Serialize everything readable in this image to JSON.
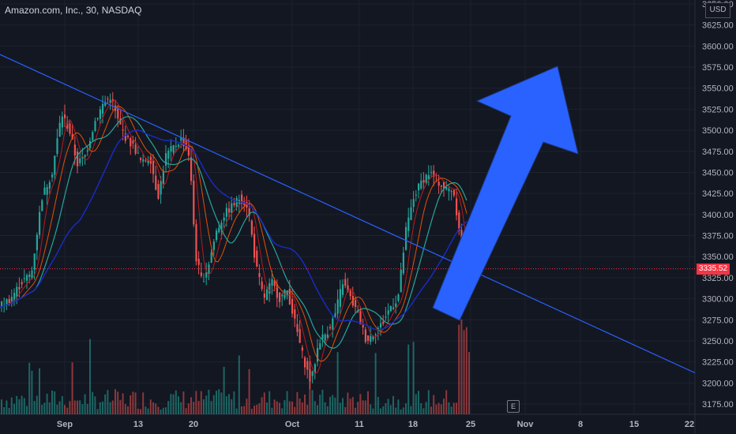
{
  "header": {
    "title": "Amazon.com, Inc., 30, NASDAQ"
  },
  "axis": {
    "currency": "USD"
  },
  "last_price": {
    "value": "3335.52",
    "color": "#f23645"
  },
  "colors": {
    "up": "#26a69a",
    "down": "#ef5350",
    "trendline": "#2962ff",
    "arrow": "#2962ff",
    "ma_fast": "#b71c1c",
    "ma_mid": "#e65100",
    "ma_slow": "#26a69a",
    "ma_long": "#1a2bc9"
  },
  "chart_data": {
    "type": "candlestick",
    "ylim": [
      3175,
      3650
    ],
    "yticks": [
      "3650.00",
      "3625.00",
      "3600.00",
      "3575.00",
      "3550.00",
      "3525.00",
      "3500.00",
      "3475.00",
      "3450.00",
      "3425.00",
      "3400.00",
      "3375.00",
      "3350.00",
      "3325.00",
      "3300.00",
      "3275.00",
      "3250.00",
      "3225.00",
      "3200.00",
      "3175.00"
    ],
    "xticks": [
      "Sep",
      "13",
      "20",
      "Oct",
      "11",
      "18",
      "25",
      "Nov",
      "8",
      "15",
      "22"
    ],
    "price_path": [
      [
        0,
        3290
      ],
      [
        15,
        3300
      ],
      [
        30,
        3320
      ],
      [
        42,
        3330
      ],
      [
        55,
        3420
      ],
      [
        68,
        3450
      ],
      [
        80,
        3520
      ],
      [
        90,
        3500
      ],
      [
        100,
        3460
      ],
      [
        110,
        3470
      ],
      [
        122,
        3510
      ],
      [
        132,
        3530
      ],
      [
        142,
        3540
      ],
      [
        152,
        3510
      ],
      [
        162,
        3490
      ],
      [
        172,
        3480
      ],
      [
        182,
        3460
      ],
      [
        192,
        3470
      ],
      [
        202,
        3420
      ],
      [
        212,
        3470
      ],
      [
        222,
        3480
      ],
      [
        232,
        3490
      ],
      [
        242,
        3470
      ],
      [
        250,
        3350
      ],
      [
        258,
        3320
      ],
      [
        266,
        3340
      ],
      [
        276,
        3380
      ],
      [
        286,
        3400
      ],
      [
        296,
        3410
      ],
      [
        306,
        3420
      ],
      [
        316,
        3410
      ],
      [
        326,
        3340
      ],
      [
        336,
        3300
      ],
      [
        346,
        3320
      ],
      [
        356,
        3300
      ],
      [
        366,
        3310
      ],
      [
        376,
        3270
      ],
      [
        386,
        3230
      ],
      [
        396,
        3200
      ],
      [
        406,
        3250
      ],
      [
        416,
        3260
      ],
      [
        426,
        3280
      ],
      [
        436,
        3320
      ],
      [
        446,
        3300
      ],
      [
        456,
        3280
      ],
      [
        466,
        3250
      ],
      [
        476,
        3260
      ],
      [
        486,
        3270
      ],
      [
        496,
        3290
      ],
      [
        506,
        3300
      ],
      [
        516,
        3380
      ],
      [
        526,
        3420
      ],
      [
        536,
        3440
      ],
      [
        546,
        3450
      ],
      [
        556,
        3440
      ],
      [
        566,
        3430
      ],
      [
        576,
        3430
      ],
      [
        584,
        3380
      ],
      [
        588,
        3345
      ],
      [
        594,
        3335
      ]
    ],
    "trendline": {
      "from": [
        0,
        3590
      ],
      "to": [
        880,
        3212
      ]
    },
    "annotation_arrow": "up"
  }
}
